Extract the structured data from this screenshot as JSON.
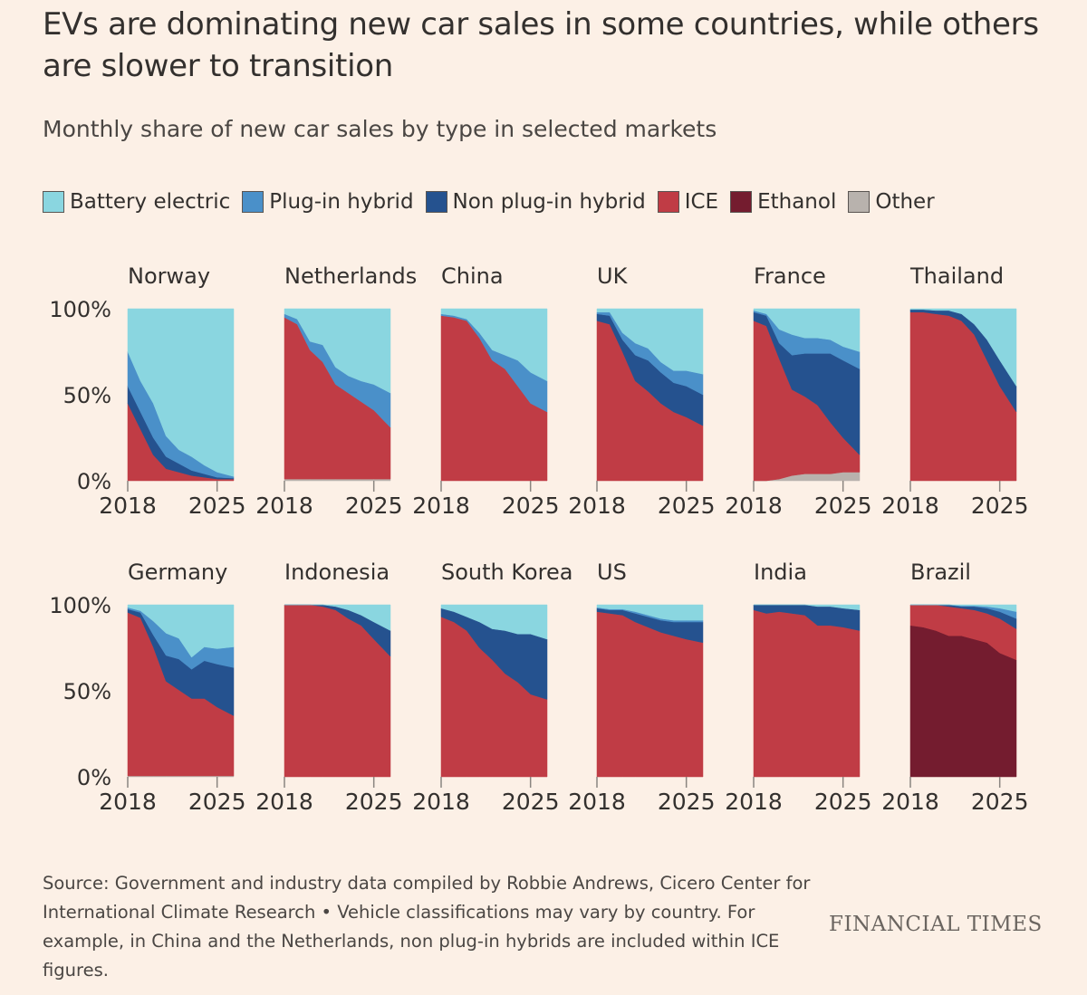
{
  "header": {
    "title": "EVs are dominating new car sales in some countries, while others are slower to transition",
    "subtitle": "Monthly share of new car sales by type in selected markets"
  },
  "legend": [
    {
      "label": "Battery electric",
      "color": "#8ad6e0"
    },
    {
      "label": "Plug-in hybrid",
      "color": "#4a90c9"
    },
    {
      "label": "Non plug-in hybrid",
      "color": "#25528f"
    },
    {
      "label": "ICE",
      "color": "#c03c45"
    },
    {
      "label": "Ethanol",
      "color": "#741c2f"
    },
    {
      "label": "Other",
      "color": "#b8b2ad"
    }
  ],
  "footer": {
    "source": "Source: Government and industry data compiled by Robbie Andrews, Cicero Center for International Climate Research • Vehicle classifications may vary by country. For example, in China and the Netherlands, non plug-in hybrids are included within ICE figures.",
    "logo": "FINANCIAL TIMES"
  },
  "chart_data": {
    "type": "area",
    "stacked": true,
    "normalized": true,
    "x": [
      2018,
      2019,
      2020,
      2021,
      2022,
      2023,
      2024,
      2025,
      2026.3
    ],
    "xlim": [
      2018,
      2026.3
    ],
    "ylim": [
      0,
      100
    ],
    "x_ticks": [
      "2018",
      "2025"
    ],
    "y_ticks": [
      "100%",
      "50%",
      "0%"
    ],
    "stack_order_bottom_to_top": [
      "Other",
      "Ethanol",
      "ICE",
      "Non plug-in hybrid",
      "Plug-in hybrid",
      "Battery electric"
    ],
    "panels": [
      {
        "name": "Norway",
        "series": {
          "ICE": [
            45,
            30,
            15,
            7,
            5,
            3,
            2,
            1,
            1
          ],
          "Non plug-in hybrid": [
            10,
            10,
            10,
            7,
            5,
            3,
            2,
            1,
            0.5
          ],
          "Plug-in hybrid": [
            20,
            18,
            20,
            12,
            8,
            8,
            5,
            3,
            1
          ],
          "Battery electric": [
            25,
            42,
            55,
            74,
            82,
            86,
            91,
            95,
            97.5
          ]
        }
      },
      {
        "name": "Netherlands",
        "series": {
          "Other": [
            1,
            1,
            1,
            1,
            1,
            1,
            1,
            1,
            1
          ],
          "ICE": [
            94,
            90,
            75,
            68,
            55,
            50,
            45,
            40,
            30
          ],
          "Plug-in hybrid": [
            2,
            3,
            5,
            10,
            10,
            10,
            12,
            15,
            20
          ],
          "Battery electric": [
            3,
            6,
            19,
            21,
            34,
            39,
            42,
            44,
            49
          ]
        }
      },
      {
        "name": "China",
        "series": {
          "ICE": [
            96,
            95,
            93,
            83,
            70,
            65,
            55,
            45,
            40
          ],
          "Plug-in hybrid": [
            1,
            1,
            1,
            3,
            6,
            8,
            15,
            18,
            18
          ],
          "Battery electric": [
            3,
            4,
            6,
            14,
            24,
            27,
            30,
            37,
            42
          ]
        }
      },
      {
        "name": "UK",
        "series": {
          "ICE": [
            93,
            91,
            75,
            58,
            52,
            45,
            40,
            37,
            32
          ],
          "Non plug-in hybrid": [
            4,
            5,
            7,
            15,
            18,
            18,
            17,
            18,
            18
          ],
          "Plug-in hybrid": [
            1,
            2,
            4,
            7,
            7,
            6,
            7,
            9,
            12
          ],
          "Battery electric": [
            2,
            2,
            14,
            20,
            23,
            31,
            36,
            36,
            38
          ]
        }
      },
      {
        "name": "France",
        "series": {
          "Other": [
            0,
            0,
            1,
            3,
            4,
            4,
            4,
            5,
            5
          ],
          "ICE": [
            93,
            90,
            70,
            50,
            45,
            40,
            30,
            20,
            10
          ],
          "Non plug-in hybrid": [
            5,
            6,
            9,
            20,
            25,
            30,
            40,
            45,
            50
          ],
          "Plug-in hybrid": [
            1,
            1,
            8,
            12,
            9,
            9,
            8,
            8,
            10
          ],
          "Battery electric": [
            1,
            3,
            12,
            15,
            17,
            17,
            18,
            22,
            25
          ]
        }
      },
      {
        "name": "Thailand",
        "series": {
          "ICE": [
            98,
            98,
            97,
            96,
            93,
            85,
            70,
            55,
            40
          ],
          "Non plug-in hybrid": [
            1.5,
            1.5,
            2,
            3,
            4,
            6,
            12,
            15,
            15
          ],
          "Battery electric": [
            0.5,
            0.5,
            1,
            1,
            3,
            9,
            18,
            30,
            45
          ]
        }
      },
      {
        "name": "Germany",
        "series": {
          "Other": [
            0.5,
            0.5,
            0.5,
            0.5,
            0.5,
            0.5,
            0.5,
            0.5,
            0.5
          ],
          "ICE": [
            95,
            92,
            75,
            55,
            50,
            45,
            45,
            40,
            35
          ],
          "Non plug-in hybrid": [
            2,
            3,
            7,
            15,
            18,
            17,
            22,
            25,
            28
          ],
          "Plug-in hybrid": [
            1,
            1,
            8,
            13,
            12,
            7,
            8,
            9,
            12
          ],
          "Battery electric": [
            1.5,
            3.5,
            9.5,
            16.5,
            19.5,
            30.5,
            24.5,
            25.5,
            24.5
          ]
        }
      },
      {
        "name": "Indonesia",
        "series": {
          "ICE": [
            100,
            100,
            100,
            99,
            97,
            92,
            88,
            80,
            70
          ],
          "Non plug-in hybrid": [
            0,
            0,
            0,
            1,
            2,
            5,
            6,
            10,
            15
          ],
          "Battery electric": [
            0,
            0,
            0,
            0,
            1,
            3,
            6,
            10,
            15
          ]
        }
      },
      {
        "name": "South Korea",
        "series": {
          "ICE": [
            93,
            90,
            85,
            75,
            68,
            60,
            55,
            48,
            45
          ],
          "Non plug-in hybrid": [
            5,
            6,
            8,
            15,
            18,
            25,
            28,
            35,
            35
          ],
          "Battery electric": [
            2,
            4,
            7,
            10,
            14,
            15,
            17,
            17,
            20
          ]
        }
      },
      {
        "name": "US",
        "series": {
          "ICE": [
            96,
            95,
            94,
            90,
            87,
            84,
            82,
            80,
            78
          ],
          "Non plug-in hybrid": [
            2,
            2,
            3,
            5,
            6,
            7,
            8,
            10,
            12
          ],
          "Plug-in hybrid": [
            0.5,
            0.5,
            0.5,
            1,
            1,
            1,
            1,
            1,
            1
          ],
          "Battery electric": [
            1.5,
            2.5,
            2.5,
            4,
            6,
            8,
            9,
            9,
            9
          ]
        }
      },
      {
        "name": "India",
        "series": {
          "ICE": [
            97,
            95,
            96,
            95,
            94,
            88,
            88,
            87,
            85
          ],
          "Non plug-in hybrid": [
            3,
            5,
            4,
            5,
            6,
            11,
            11,
            11,
            12
          ],
          "Battery electric": [
            0,
            0,
            0,
            0,
            0,
            1,
            1,
            2,
            3
          ]
        }
      },
      {
        "name": "Brazil",
        "series": {
          "Ethanol": [
            88,
            87,
            85,
            82,
            82,
            80,
            78,
            72,
            68
          ],
          "ICE": [
            12,
            13,
            15,
            17,
            16,
            17,
            17,
            20,
            18
          ],
          "Non plug-in hybrid": [
            0,
            0,
            0,
            1,
            1,
            2,
            3,
            4,
            6
          ],
          "Plug-in hybrid": [
            0,
            0,
            0,
            0,
            0.5,
            0.5,
            1,
            2,
            4
          ],
          "Battery electric": [
            0,
            0,
            0,
            0,
            0.5,
            0.5,
            1,
            2,
            4
          ]
        }
      }
    ]
  }
}
